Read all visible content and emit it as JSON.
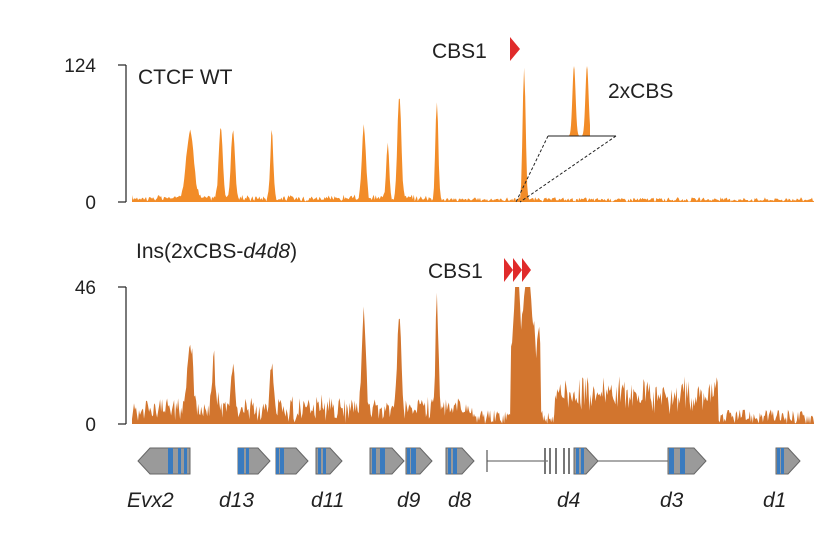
{
  "tracks": [
    {
      "id": "wt",
      "label": "CTCF WT",
      "ymax_label": "124",
      "ymin_label": "0",
      "ymax": 124,
      "color": "#f28c28",
      "cbs_label": "CBS1",
      "peaks": [
        {
          "pos": 0.085,
          "height": 60,
          "width": 0.008
        },
        {
          "pos": 0.13,
          "height": 66,
          "width": 0.004
        },
        {
          "pos": 0.148,
          "height": 64,
          "width": 0.004
        },
        {
          "pos": 0.205,
          "height": 64,
          "width": 0.003
        },
        {
          "pos": 0.34,
          "height": 65,
          "width": 0.004
        },
        {
          "pos": 0.375,
          "height": 52,
          "width": 0.003
        },
        {
          "pos": 0.392,
          "height": 94,
          "width": 0.004
        },
        {
          "pos": 0.447,
          "height": 88,
          "width": 0.003
        },
        {
          "pos": 0.575,
          "height": 120,
          "width": 0.003
        }
      ]
    },
    {
      "id": "ins",
      "label_prefix": "Ins(2xCBS-",
      "label_italic": "d4d8",
      "label_suffix": ")",
      "ymax_label": "46",
      "ymin_label": "0",
      "ymax": 46,
      "color": "#d2752e",
      "cbs_label": "CBS1",
      "peaks": [
        {
          "pos": 0.085,
          "height": 22,
          "width": 0.006
        },
        {
          "pos": 0.12,
          "height": 16,
          "width": 0.004
        },
        {
          "pos": 0.148,
          "height": 14,
          "width": 0.004
        },
        {
          "pos": 0.205,
          "height": 17,
          "width": 0.003
        },
        {
          "pos": 0.34,
          "height": 35,
          "width": 0.004
        },
        {
          "pos": 0.392,
          "height": 33,
          "width": 0.004
        },
        {
          "pos": 0.447,
          "height": 40,
          "width": 0.003
        },
        {
          "pos": 0.565,
          "height": 40,
          "width": 0.004
        },
        {
          "pos": 0.58,
          "height": 44,
          "width": 0.005
        }
      ]
    }
  ],
  "inset": {
    "label": "2xCBS"
  },
  "genes": [
    {
      "label": "Evx2"
    },
    {
      "label": "d13"
    },
    {
      "label": "d11"
    },
    {
      "label": "d9"
    },
    {
      "label": "d8"
    },
    {
      "label": "d4"
    },
    {
      "label": "d3"
    },
    {
      "label": "d1"
    }
  ]
}
